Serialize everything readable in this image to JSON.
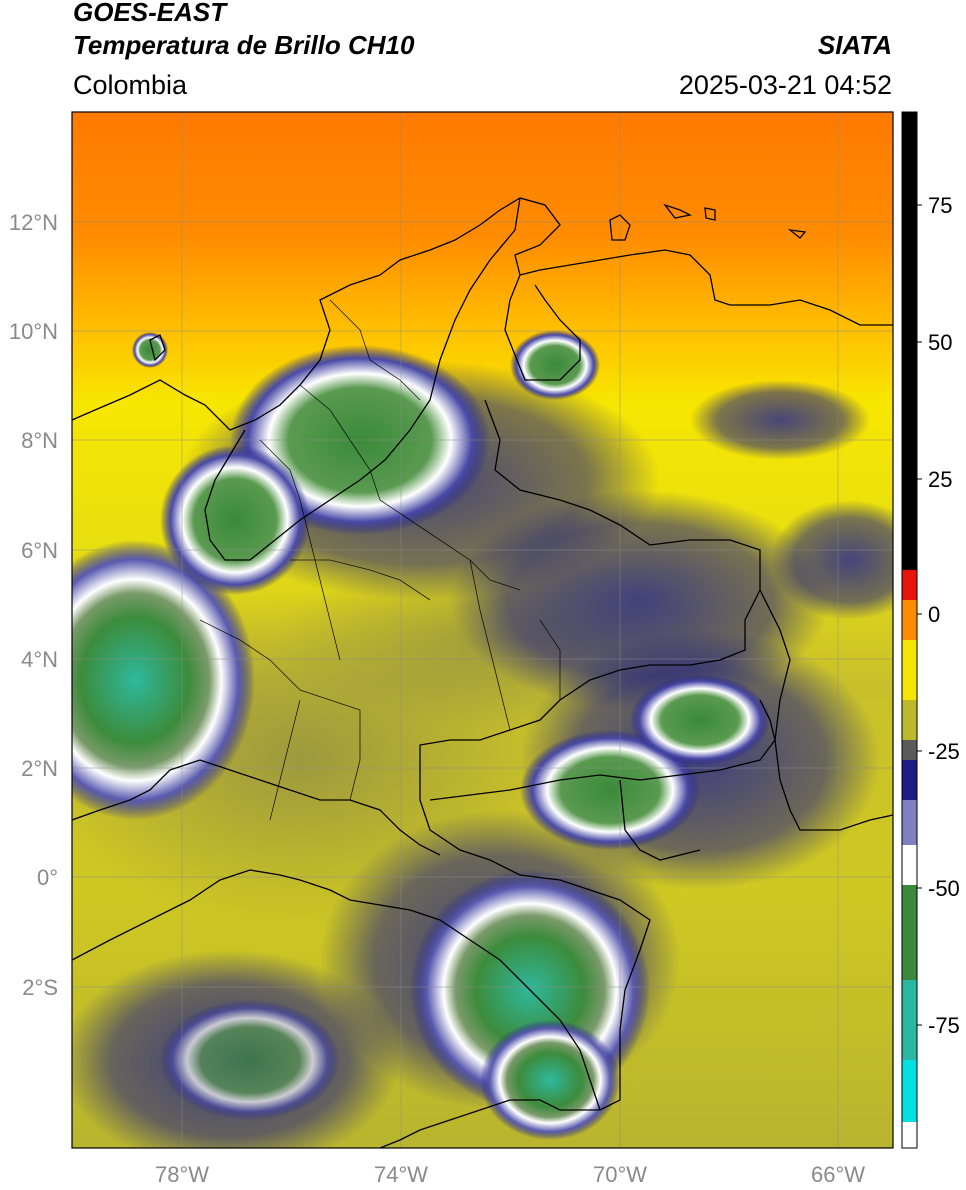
{
  "header": {
    "satellite": "GOES-EAST",
    "product": "Temperatura de Brillo CH10",
    "region": "Colombia",
    "agency": "SIATA",
    "datetime": "2025-03-21 04:52"
  },
  "map": {
    "lon_range": [
      -79.5,
      -64.5
    ],
    "lat_range": [
      -5.0,
      14.0
    ],
    "gridlines": true,
    "lat_labels": [
      "12°N",
      "10°N",
      "8°N",
      "6°N",
      "4°N",
      "2°N",
      "0°",
      "2°S"
    ],
    "lon_labels": [
      "78°W",
      "74°W",
      "70°W",
      "66°W"
    ]
  },
  "colorbar": {
    "range": [
      -95,
      90
    ],
    "tick_labels": [
      "75",
      "50",
      "25",
      "0",
      "-25",
      "-50",
      "-75"
    ],
    "colors": {
      "black": "#000000",
      "red": "#e8140a",
      "orange": "#ff8c00",
      "yellow": "#f5e600",
      "olive": "#bdb82c",
      "navy": "#1c1c84",
      "white": "#ffffff",
      "green": "#3a8a3a",
      "teal": "#2ab8a0",
      "cyan": "#00e0e0"
    }
  }
}
